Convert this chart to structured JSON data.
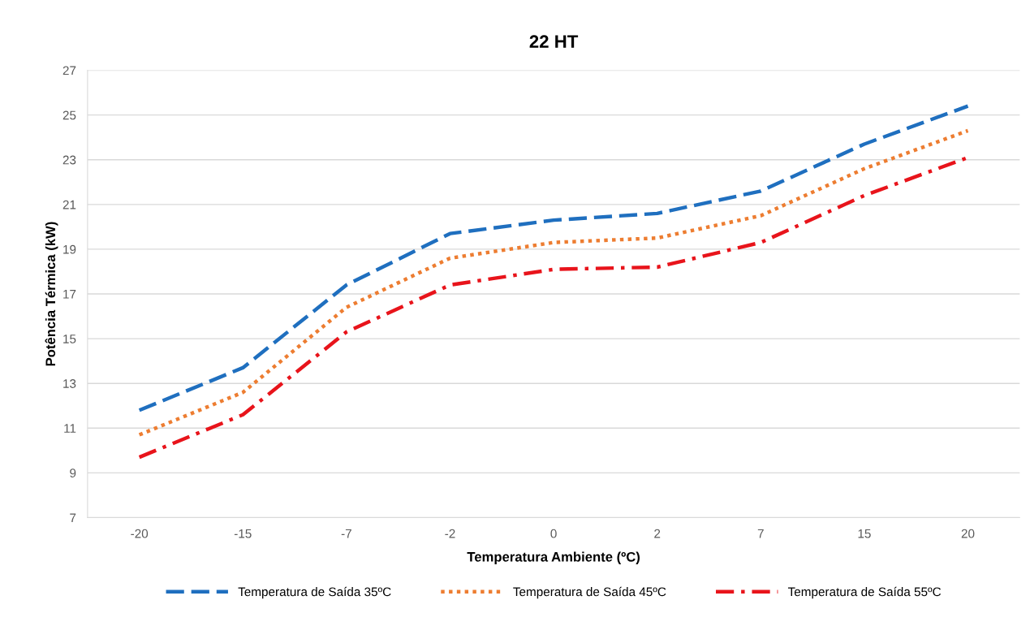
{
  "chart_data": {
    "type": "line",
    "title": "22 HT",
    "xlabel": "Temperatura Ambiente (ºC)",
    "ylabel": "Potência Térmica (kW)",
    "categories": [
      "-20",
      "-15",
      "-7",
      "-2",
      "0",
      "2",
      "7",
      "15",
      "20"
    ],
    "series": [
      {
        "name": "Temperatura de Saída 35ºC",
        "color": "#1f6fbf",
        "line_style": "dashed",
        "values": [
          11.8,
          13.7,
          17.4,
          19.7,
          20.3,
          20.6,
          21.6,
          23.7,
          25.4
        ]
      },
      {
        "name": "Temperatura de Saída 45ºC",
        "color": "#ed7d31",
        "line_style": "dotted",
        "values": [
          10.7,
          12.6,
          16.4,
          18.6,
          19.3,
          19.5,
          20.5,
          22.6,
          24.3
        ]
      },
      {
        "name": "Temperatura de Saída 55ºC",
        "color": "#e8141b",
        "line_style": "dashdot",
        "values": [
          9.7,
          11.6,
          15.3,
          17.4,
          18.1,
          18.2,
          19.3,
          21.4,
          23.1
        ]
      }
    ],
    "ylim": [
      7,
      27
    ],
    "yticks": [
      7,
      9,
      11,
      13,
      15,
      17,
      19,
      21,
      23,
      25,
      27
    ],
    "grid": "y",
    "legend": "bottom",
    "marker": "none"
  }
}
